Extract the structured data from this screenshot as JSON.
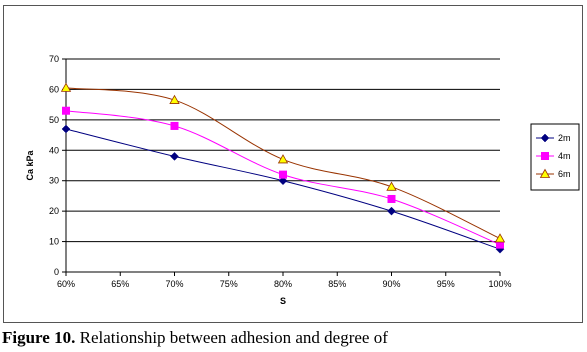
{
  "chart_data": {
    "type": "line",
    "title": "",
    "xlabel": "S",
    "ylabel": "Ca kPa",
    "x_ticks": [
      "60%",
      "65%",
      "70%",
      "75%",
      "80%",
      "85%",
      "90%",
      "95%",
      "100%"
    ],
    "x": [
      60,
      70,
      80,
      90,
      100
    ],
    "xlim": [
      60,
      100
    ],
    "ylim": [
      0,
      70
    ],
    "y_ticks": [
      "0",
      "10",
      "20",
      "30",
      "40",
      "50",
      "60",
      "70"
    ],
    "grid": "horizontal",
    "legend_position": "right",
    "series": [
      {
        "name": "2m",
        "values": [
          47,
          38,
          30,
          20,
          7.5
        ],
        "color": "#000080",
        "marker": "diamond"
      },
      {
        "name": "4m",
        "values": [
          53,
          48,
          32,
          24,
          9
        ],
        "color": "#ff00ff",
        "marker": "square"
      },
      {
        "name": "6m",
        "values": [
          60.5,
          56.5,
          37,
          28,
          11
        ],
        "color": "#993300",
        "marker": "triangle",
        "marker_fill": "#ffff00"
      }
    ]
  },
  "caption": {
    "label": "Figure 10.",
    "text": " Relationship between adhesion and degree of"
  }
}
